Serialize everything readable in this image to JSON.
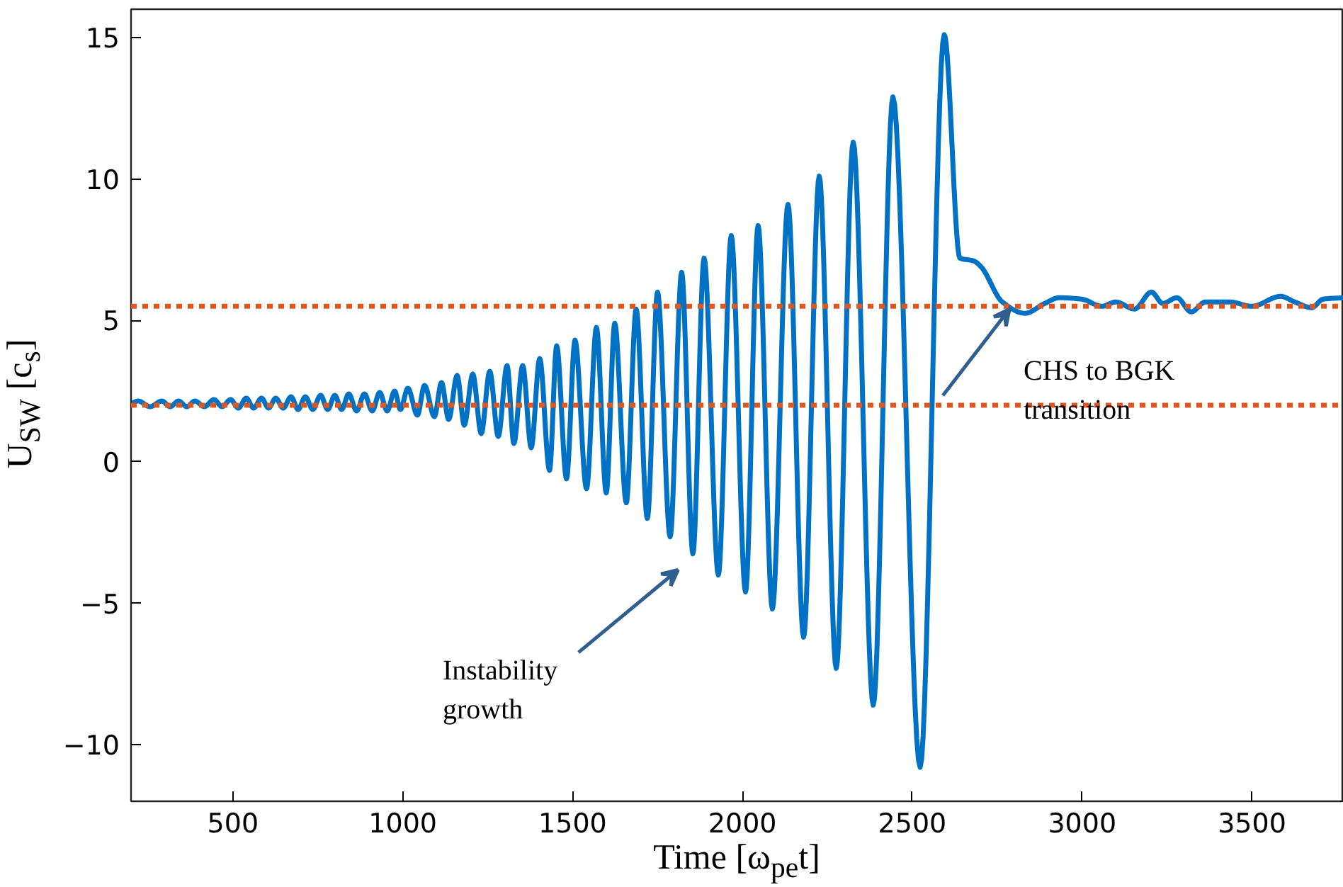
{
  "chart_data": {
    "type": "line",
    "xlabel": "Time [ω$_{pe}$t]",
    "ylabel": "U$_{SW}$ [c$_{s}$]",
    "xlim": [
      200,
      3770
    ],
    "ylim": [
      -12,
      16
    ],
    "xticks": [
      500,
      1000,
      1500,
      2000,
      2500,
      3000,
      3500
    ],
    "yticks": [
      -10,
      -5,
      0,
      5,
      10,
      15
    ],
    "grid": false,
    "marker": "none",
    "line_style": "solid",
    "series": [
      {
        "color": "#0072c6",
        "x": [
          200,
          221,
          256,
          291,
          315,
          340,
          364,
          388,
          416,
          444,
          468,
          493,
          516,
          539,
          561,
          584,
          605,
          626,
          648,
          671,
          692,
          713,
          735,
          758,
          779,
          800,
          820,
          841,
          864,
          887,
          910,
          932,
          954,
          976,
          993,
          1015,
          1043,
          1064,
          1093,
          1114,
          1135,
          1160,
          1181,
          1206,
          1231,
          1256,
          1281,
          1307,
          1327,
          1353,
          1378,
          1403,
          1432,
          1453,
          1482,
          1507,
          1541,
          1570,
          1599,
          1624,
          1658,
          1687,
          1720,
          1750,
          1787,
          1821,
          1854,
          1887,
          1929,
          1967,
          2009,
          2046,
          2088,
          2134,
          2180,
          2226,
          2276,
          2326,
          2385,
          2443,
          2523,
          2594,
          2640,
          2681,
          2702,
          2765,
          2832,
          2890,
          2932,
          2999,
          3058,
          3099,
          3154,
          3204,
          3237,
          3279,
          3321,
          3363,
          3434,
          3500,
          3584,
          3626,
          3676,
          3709,
          3770
        ],
        "values": [
          2.05,
          2.15,
          1.95,
          2.15,
          1.95,
          2.15,
          1.95,
          2.15,
          1.95,
          2.2,
          1.95,
          2.2,
          1.9,
          2.25,
          1.9,
          2.25,
          1.9,
          2.25,
          1.9,
          2.3,
          1.85,
          2.3,
          1.85,
          2.35,
          1.85,
          2.35,
          1.85,
          2.4,
          1.8,
          2.4,
          1.8,
          2.45,
          1.8,
          2.5,
          1.85,
          2.6,
          1.65,
          2.7,
          1.6,
          2.8,
          1.5,
          3.05,
          1.3,
          3.1,
          1.0,
          3.2,
          0.9,
          3.4,
          0.65,
          3.4,
          0.5,
          3.65,
          -0.3,
          4.1,
          -0.6,
          4.3,
          -0.95,
          4.75,
          -1.1,
          4.9,
          -1.45,
          5.4,
          -2.0,
          6.0,
          -2.65,
          6.7,
          -3.25,
          7.2,
          -4.0,
          8.0,
          -4.6,
          8.35,
          -5.2,
          9.1,
          -6.2,
          10.1,
          -7.3,
          11.3,
          -8.6,
          12.9,
          -10.8,
          15.1,
          7.2,
          7.1,
          6.9,
          5.65,
          5.25,
          5.6,
          5.8,
          5.75,
          5.5,
          5.65,
          5.4,
          6.0,
          5.6,
          5.8,
          5.3,
          5.65,
          5.65,
          5.5,
          5.85,
          5.65,
          5.45,
          5.75,
          5.8
        ]
      }
    ],
    "ref_lines": [
      {
        "axis": "y",
        "value": 5.5,
        "color": "#e2561d",
        "line_style": "dashed"
      },
      {
        "axis": "y",
        "value": 2,
        "color": "#e2561d",
        "line_style": "dashed"
      }
    ],
    "annotations": [
      "Instability\ngrowth",
      {
        "text": "CHS to BGK\ntransition",
        "x": 2786,
        "y": 5.4
      }
    ]
  }
}
